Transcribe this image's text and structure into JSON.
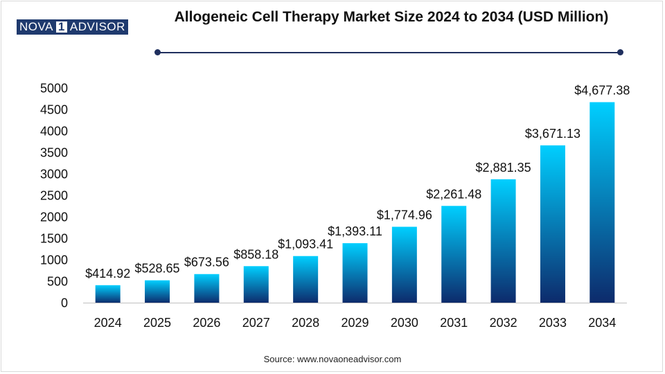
{
  "logo": {
    "part1": "NOVA",
    "part2": "1",
    "part3": "ADVISOR"
  },
  "title": "Allogeneic Cell Therapy Market Size 2024 to 2034 (USD Million)",
  "source": "Source: www.novaoneadvisor.com",
  "colors": {
    "bar_top": "#00cfff",
    "bar_bottom": "#0d2a6b",
    "rule": "#1f2f5e"
  },
  "chart_data": {
    "type": "bar",
    "categories": [
      "2024",
      "2025",
      "2026",
      "2027",
      "2028",
      "2029",
      "2030",
      "2031",
      "2032",
      "2033",
      "2034"
    ],
    "values": [
      414.92,
      528.65,
      673.56,
      858.18,
      1093.41,
      1393.11,
      1774.96,
      2261.48,
      2881.35,
      3671.13,
      4677.38
    ],
    "data_labels": [
      "$414.92",
      "$528.65",
      "$673.56",
      "$858.18",
      "$1,093.41",
      "$1,393.11",
      "$1,774.96",
      "$2,261.48",
      "$2,881.35",
      "$3,671.13",
      "$4,677.38"
    ],
    "y_ticks": [
      "0",
      "500",
      "1000",
      "1500",
      "2000",
      "2500",
      "3000",
      "3500",
      "4000",
      "4500",
      "5000"
    ],
    "ylim": [
      0,
      5000
    ],
    "xlabel": "",
    "ylabel": "",
    "grid": false,
    "legend": "none"
  }
}
